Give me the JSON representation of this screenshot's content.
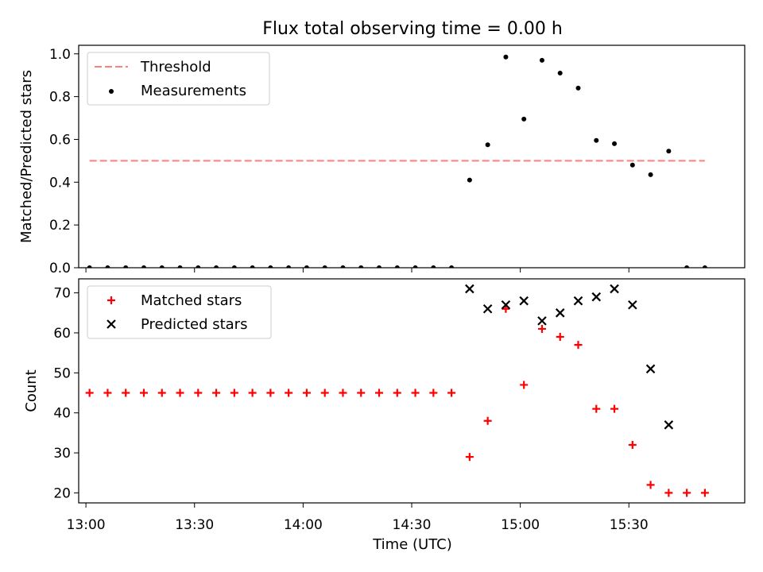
{
  "figure": {
    "title": "Flux total observing time = 0.00 h",
    "xlabel": "Time (UTC)",
    "xticks": [
      "13:00",
      "13:30",
      "14:00",
      "14:30",
      "15:00",
      "15:30"
    ]
  },
  "chart_data": [
    {
      "type": "scatter",
      "panel": "top",
      "ylabel": "Matched/Predicted stars",
      "xlim": [
        "12:58",
        "16:02"
      ],
      "ylim": [
        0,
        1.04
      ],
      "yticks": [
        "0.0",
        "0.2",
        "0.4",
        "0.6",
        "0.8",
        "1.0"
      ],
      "legend_position": "upper left",
      "series": [
        {
          "name": "Threshold",
          "kind": "dashed-line",
          "color": "#ff7f7f",
          "x": [
            "13:01",
            "15:51"
          ],
          "y": [
            0.5,
            0.5
          ]
        },
        {
          "name": "Measurements",
          "kind": "dots",
          "color": "#000000",
          "x": [
            "13:01",
            "13:06",
            "13:11",
            "13:16",
            "13:21",
            "13:26",
            "13:31",
            "13:36",
            "13:41",
            "13:46",
            "13:51",
            "13:56",
            "14:01",
            "14:06",
            "14:11",
            "14:16",
            "14:21",
            "14:26",
            "14:31",
            "14:36",
            "14:41",
            "14:46",
            "14:51",
            "14:56",
            "15:01",
            "15:06",
            "15:11",
            "15:16",
            "15:21",
            "15:26",
            "15:31",
            "15:36",
            "15:41",
            "15:46",
            "15:51"
          ],
          "y": [
            0,
            0,
            0,
            0,
            0,
            0,
            0,
            0,
            0,
            0,
            0,
            0,
            0,
            0,
            0,
            0,
            0,
            0,
            0,
            0,
            0,
            0.41,
            0.575,
            0.985,
            0.695,
            0.97,
            0.91,
            0.84,
            0.595,
            0.58,
            0.48,
            0.435,
            0.545,
            0,
            0
          ]
        }
      ]
    },
    {
      "type": "scatter",
      "panel": "bottom",
      "ylabel": "Count",
      "xlim": [
        "12:58",
        "16:02"
      ],
      "ylim": [
        17.5,
        73.5
      ],
      "yticks": [
        "20",
        "30",
        "40",
        "50",
        "60",
        "70"
      ],
      "legend_position": "upper left",
      "series": [
        {
          "name": "Matched stars",
          "marker": "plus",
          "color": "#ff0000",
          "x": [
            "13:01",
            "13:06",
            "13:11",
            "13:16",
            "13:21",
            "13:26",
            "13:31",
            "13:36",
            "13:41",
            "13:46",
            "13:51",
            "13:56",
            "14:01",
            "14:06",
            "14:11",
            "14:16",
            "14:21",
            "14:26",
            "14:31",
            "14:36",
            "14:41",
            "14:46",
            "14:51",
            "14:56",
            "15:01",
            "15:06",
            "15:11",
            "15:16",
            "15:21",
            "15:26",
            "15:31",
            "15:36",
            "15:41",
            "15:46",
            "15:51"
          ],
          "y": [
            45,
            45,
            45,
            45,
            45,
            45,
            45,
            45,
            45,
            45,
            45,
            45,
            45,
            45,
            45,
            45,
            45,
            45,
            45,
            45,
            45,
            29,
            38,
            66,
            47,
            61,
            59,
            57,
            41,
            41,
            32,
            22,
            20,
            20,
            20
          ]
        },
        {
          "name": "Predicted stars",
          "marker": "x",
          "color": "#000000",
          "x": [
            "14:46",
            "14:51",
            "14:56",
            "15:01",
            "15:06",
            "15:11",
            "15:16",
            "15:21",
            "15:26",
            "15:31",
            "15:36",
            "15:41"
          ],
          "y": [
            71,
            66,
            67,
            68,
            63,
            65,
            68,
            69,
            71,
            67,
            51,
            37
          ]
        }
      ]
    }
  ]
}
